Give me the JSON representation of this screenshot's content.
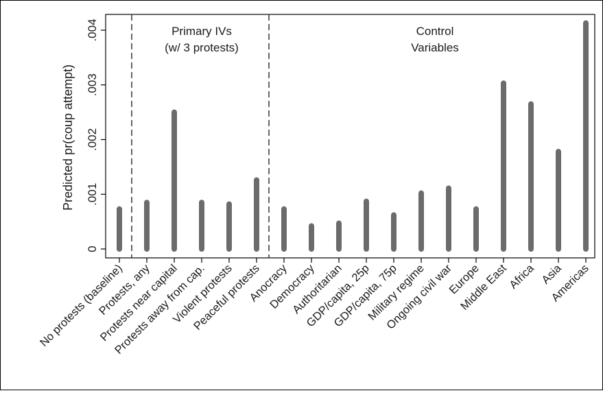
{
  "chart_data": {
    "type": "bar",
    "ylabel": "Predicted pr(coup attempt)",
    "xlabel": "",
    "ylim": [
      0,
      0.0043
    ],
    "yticks": [
      {
        "value": 0,
        "label": "0"
      },
      {
        "value": 0.001,
        "label": ".001"
      },
      {
        "value": 0.002,
        "label": ".002"
      },
      {
        "value": 0.003,
        "label": ".003"
      },
      {
        "value": 0.004,
        "label": ".004"
      }
    ],
    "grid": false,
    "bar_color": "#6b6b6b",
    "categories": [
      "No protests (baseline)",
      "Protests, any",
      "Protests near capital",
      "Protests away from cap.",
      "Violent protests",
      "Peaceful protests",
      "Anocracy",
      "Democracy",
      "Authoritarian",
      "GDP/capita, 25p",
      "GDP/capita, 75p",
      "Military regime",
      "Ongoing civil war",
      "Europe",
      "Middle East",
      "Africa",
      "Asia",
      "Americas"
    ],
    "values": [
      0.00073,
      0.00085,
      0.0025,
      0.00085,
      0.00082,
      0.00126,
      0.00073,
      0.00042,
      0.00047,
      0.00087,
      0.00062,
      0.00102,
      0.00111,
      0.00073,
      0.00303,
      0.00265,
      0.00178,
      0.00413
    ],
    "groups": [
      {
        "label_lines": [
          "Primary IVs",
          "(w/ 3 protests)"
        ],
        "from_index": 1,
        "to_index": 5
      },
      {
        "label_lines": [
          "Control",
          "Variables"
        ],
        "from_index": 6,
        "to_index": 17
      }
    ],
    "dividers_after_index": [
      0,
      5
    ]
  }
}
